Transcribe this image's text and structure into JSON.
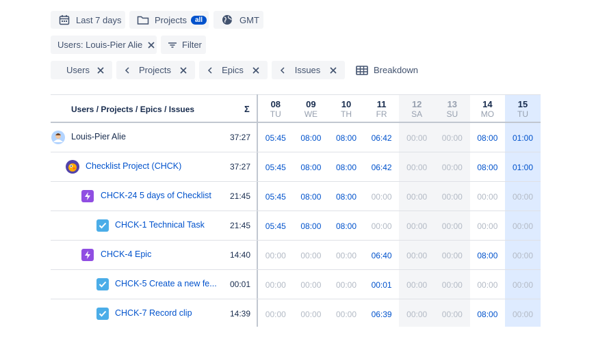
{
  "toolbar": {
    "date_range": "Last 7 days",
    "projects": "Projects",
    "projects_badge": "all",
    "timezone": "GMT"
  },
  "filters": {
    "users": "Users: Louis-Pier Alie",
    "filter": "Filter"
  },
  "breakdown": {
    "levels": [
      "Users",
      "Projects",
      "Epics",
      "Issues"
    ],
    "button": "Breakdown"
  },
  "table": {
    "header": "Users / Projects / Epics / Issues",
    "total_header": "Σ",
    "days": [
      {
        "date": "08",
        "weekday": "TU"
      },
      {
        "date": "09",
        "weekday": "WE"
      },
      {
        "date": "10",
        "weekday": "TH"
      },
      {
        "date": "11",
        "weekday": "FR"
      },
      {
        "date": "12",
        "weekday": "SA"
      },
      {
        "date": "13",
        "weekday": "SU"
      },
      {
        "date": "14",
        "weekday": "MO"
      },
      {
        "date": "15",
        "weekday": "TU"
      }
    ],
    "rows": [
      {
        "label": "Louis-Pier Alie",
        "total": "37:27",
        "cells": [
          "05:45",
          "08:00",
          "08:00",
          "06:42",
          "00:00",
          "00:00",
          "08:00",
          "01:00"
        ]
      },
      {
        "label": "Checklist Project (CHCK)",
        "total": "37:27",
        "cells": [
          "05:45",
          "08:00",
          "08:00",
          "06:42",
          "00:00",
          "00:00",
          "08:00",
          "01:00"
        ]
      },
      {
        "label": "CHCK-24 5 days of Checklist",
        "total": "21:45",
        "cells": [
          "05:45",
          "08:00",
          "08:00",
          "00:00",
          "00:00",
          "00:00",
          "00:00",
          "00:00"
        ]
      },
      {
        "label": "CHCK-1 Technical Task",
        "total": "21:45",
        "cells": [
          "05:45",
          "08:00",
          "08:00",
          "00:00",
          "00:00",
          "00:00",
          "00:00",
          "00:00"
        ]
      },
      {
        "label": "CHCK-4 Epic",
        "total": "14:40",
        "cells": [
          "00:00",
          "00:00",
          "00:00",
          "06:40",
          "00:00",
          "00:00",
          "08:00",
          "00:00"
        ]
      },
      {
        "label": "CHCK-5 Create a new fe...",
        "total": "00:01",
        "cells": [
          "00:00",
          "00:00",
          "00:00",
          "00:01",
          "00:00",
          "00:00",
          "00:00",
          "00:00"
        ]
      },
      {
        "label": "CHCK-7 Record clip",
        "total": "14:39",
        "cells": [
          "00:00",
          "00:00",
          "00:00",
          "06:39",
          "00:00",
          "00:00",
          "08:00",
          "00:00"
        ]
      }
    ]
  }
}
